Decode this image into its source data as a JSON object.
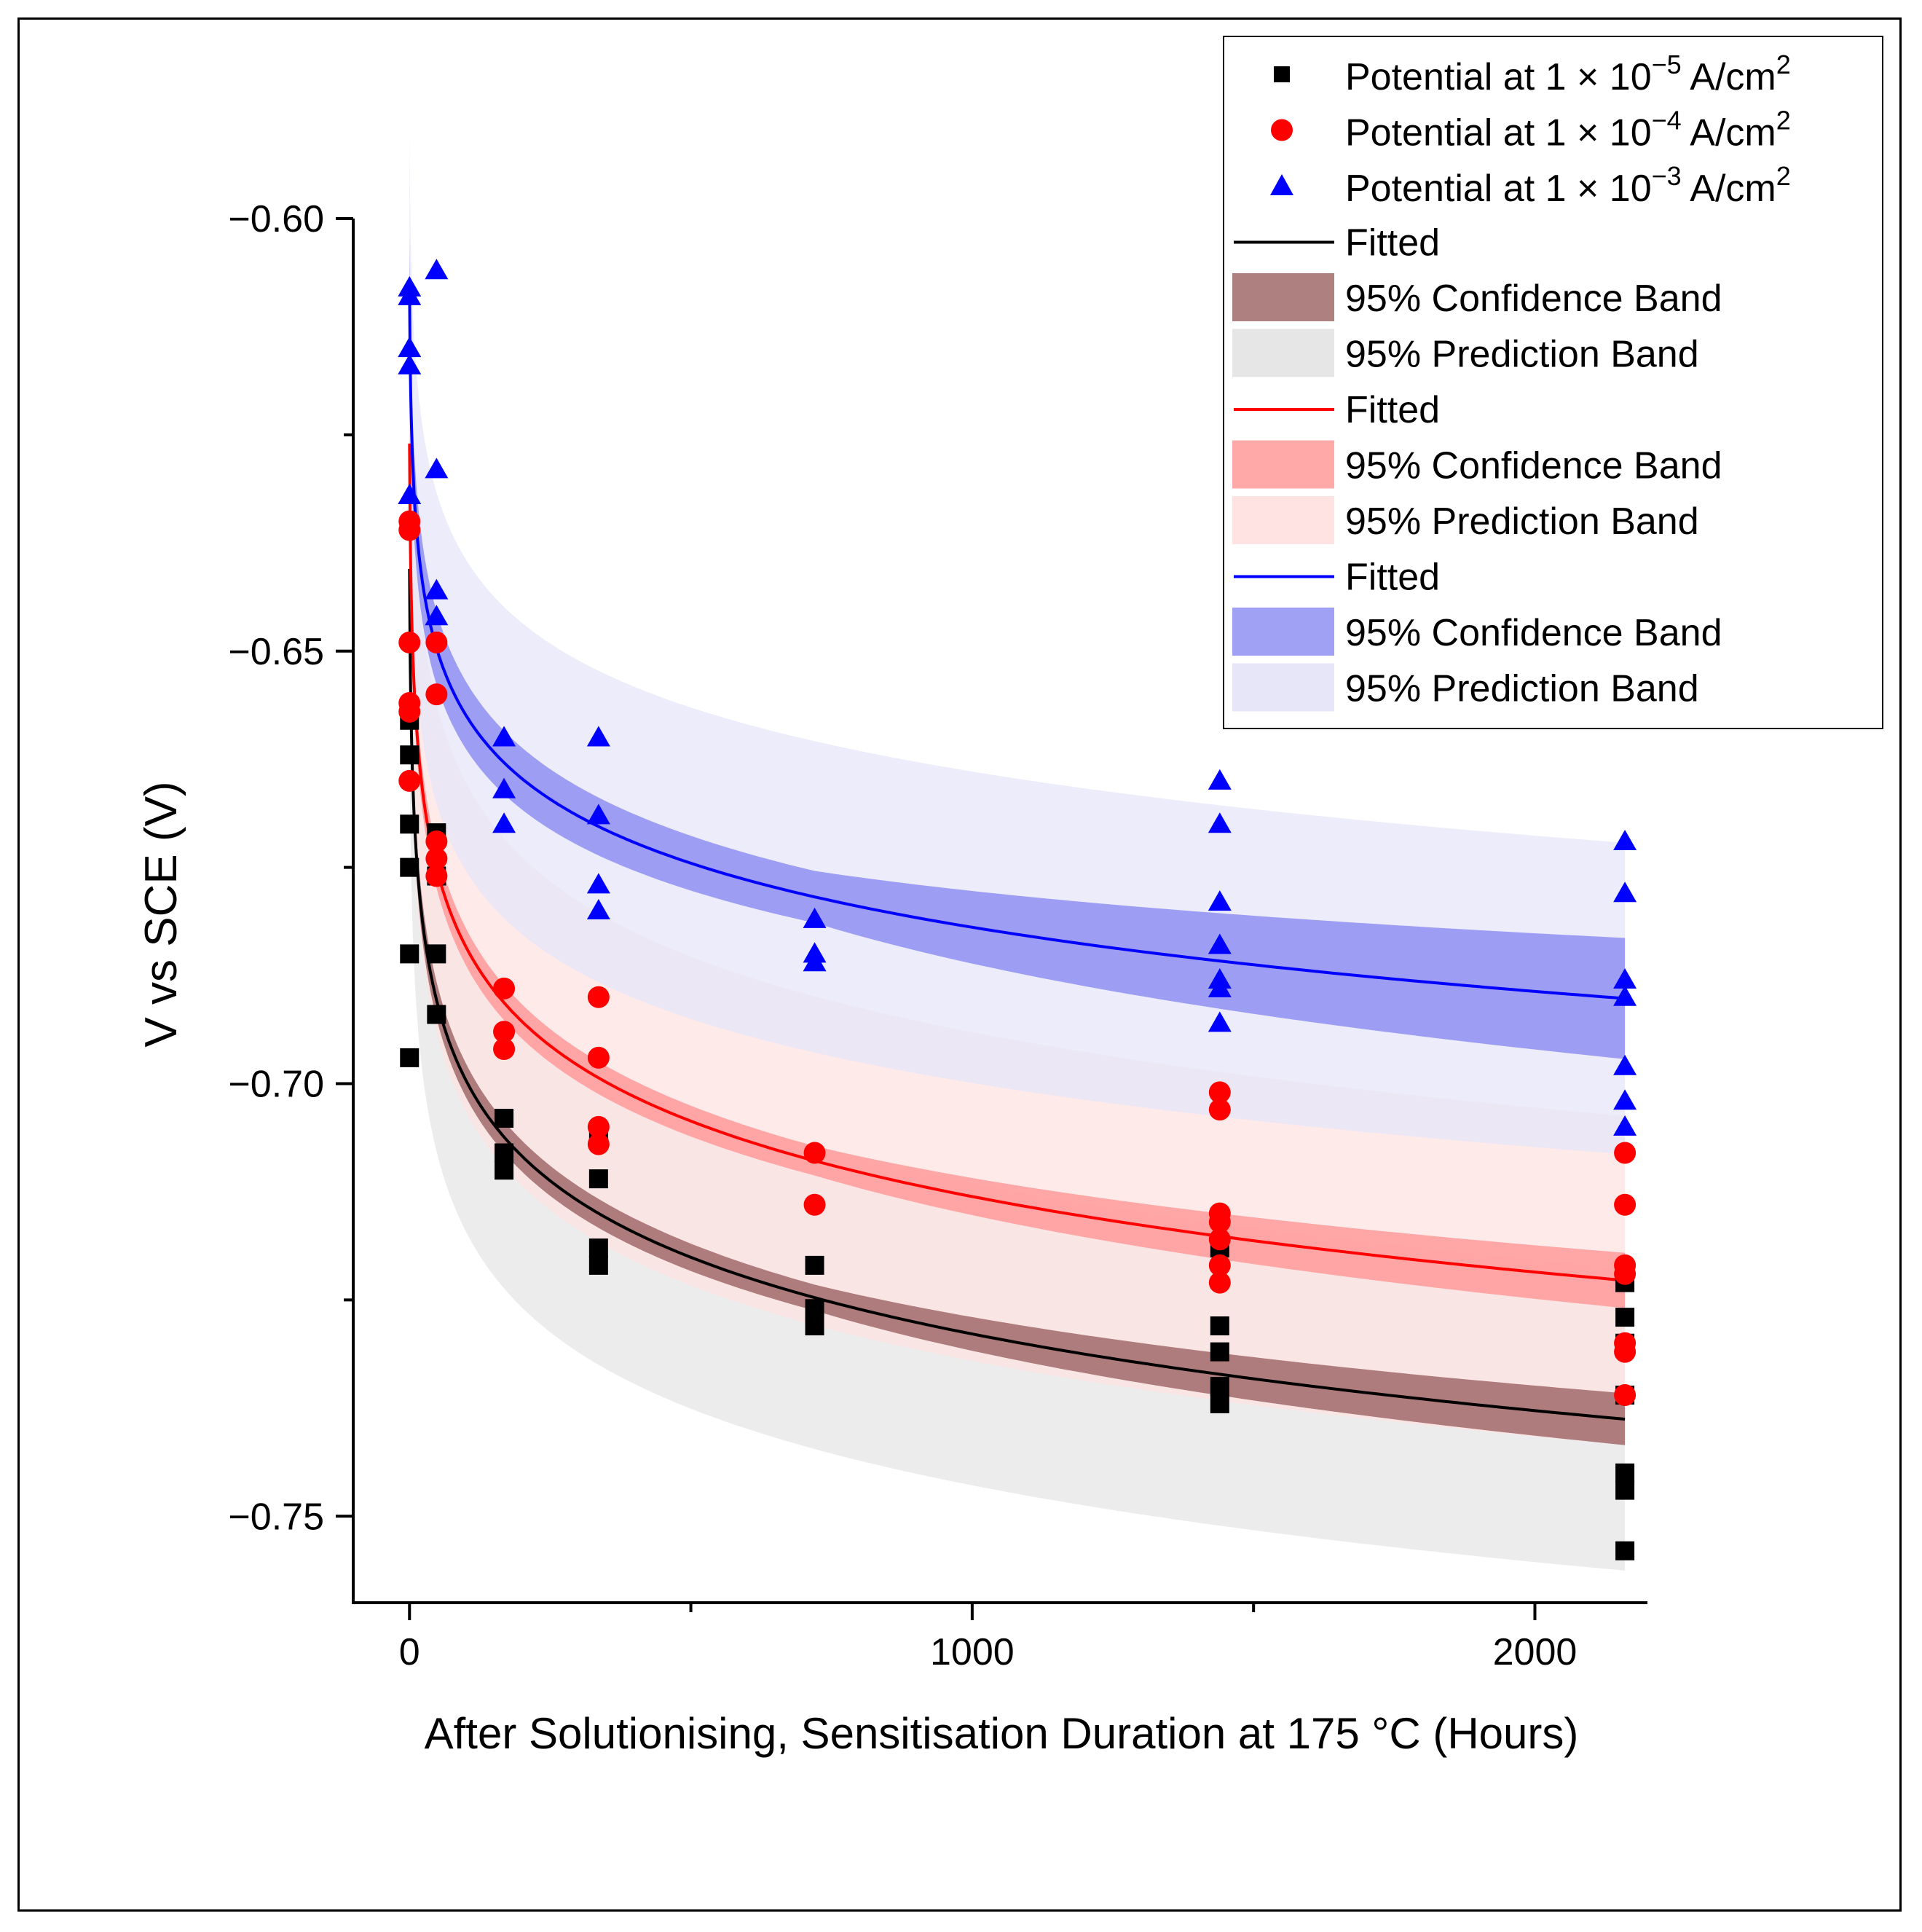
{
  "chart_data": {
    "type": "scatter",
    "xlabel": "After Solutionising, Sensitisation Duration at 175 °C (Hours)",
    "ylabel": "V vs SCE (V)",
    "xlim": [
      -100,
      2200
    ],
    "ylim": [
      -0.76,
      -0.6
    ],
    "x_ticks": [
      0,
      1000,
      2000
    ],
    "x_tick_labels": [
      "0",
      "1000",
      "2000"
    ],
    "y_ticks": [
      -0.6,
      -0.65,
      -0.7,
      -0.75
    ],
    "y_tick_labels": [
      "−0.60",
      "−0.65",
      "−0.70",
      "−0.75"
    ],
    "grid": false,
    "legend_position": "top-right",
    "series": [
      {
        "name": "Potential at 1 × 10⁻⁵ A/cm²",
        "legend_parts": {
          "pre": "Potential at 1 × 10",
          "exp": "−5",
          "post": " A/cm",
          "sup2": "2"
        },
        "marker": "square",
        "color": "#000000",
        "points": [
          [
            0,
            -0.658
          ],
          [
            0,
            -0.662
          ],
          [
            0,
            -0.67
          ],
          [
            0,
            -0.675
          ],
          [
            0,
            -0.685
          ],
          [
            0,
            -0.697
          ],
          [
            48,
            -0.671
          ],
          [
            48,
            -0.676
          ],
          [
            48,
            -0.685
          ],
          [
            48,
            -0.692
          ],
          [
            168,
            -0.704
          ],
          [
            168,
            -0.708
          ],
          [
            168,
            -0.71
          ],
          [
            336,
            -0.706
          ],
          [
            336,
            -0.711
          ],
          [
            336,
            -0.719
          ],
          [
            336,
            -0.721
          ],
          [
            720,
            -0.721
          ],
          [
            720,
            -0.726
          ],
          [
            720,
            -0.728
          ],
          [
            1440,
            -0.719
          ],
          [
            1440,
            -0.728
          ],
          [
            1440,
            -0.731
          ],
          [
            1440,
            -0.735
          ],
          [
            1440,
            -0.737
          ],
          [
            2160,
            -0.723
          ],
          [
            2160,
            -0.727
          ],
          [
            2160,
            -0.73
          ],
          [
            2160,
            -0.736
          ],
          [
            2160,
            -0.745
          ],
          [
            2160,
            -0.747
          ],
          [
            2160,
            -0.754
          ]
        ],
        "fit": {
          "a": -0.6405,
          "b": -0.0128
        },
        "confidence_band_halfwidth": [
          0.003,
          0.0015,
          0.003
        ],
        "prediction_band_halfwidth": 0.0175,
        "fit_label": "Fitted",
        "confidence_label": "95% Confidence Band",
        "prediction_label": "95% Prediction Band",
        "line_color": "#000000",
        "confidence_color": "#a06a6a",
        "prediction_color": "#e6e6e6"
      },
      {
        "name": "Potential at 1 × 10⁻⁴ A/cm²",
        "legend_parts": {
          "pre": "Potential at 1 × 10",
          "exp": "−4",
          "post": " A/cm",
          "sup2": "2"
        },
        "marker": "circle",
        "color": "#ff0000",
        "points": [
          [
            0,
            -0.635
          ],
          [
            0,
            -0.636
          ],
          [
            0,
            -0.649
          ],
          [
            0,
            -0.656
          ],
          [
            0,
            -0.657
          ],
          [
            0,
            -0.665
          ],
          [
            48,
            -0.649
          ],
          [
            48,
            -0.655
          ],
          [
            48,
            -0.672
          ],
          [
            48,
            -0.674
          ],
          [
            48,
            -0.676
          ],
          [
            168,
            -0.689
          ],
          [
            168,
            -0.694
          ],
          [
            168,
            -0.696
          ],
          [
            336,
            -0.69
          ],
          [
            336,
            -0.697
          ],
          [
            336,
            -0.705
          ],
          [
            336,
            -0.707
          ],
          [
            720,
            -0.708
          ],
          [
            720,
            -0.714
          ],
          [
            1440,
            -0.701
          ],
          [
            1440,
            -0.703
          ],
          [
            1440,
            -0.715
          ],
          [
            1440,
            -0.716
          ],
          [
            1440,
            -0.718
          ],
          [
            1440,
            -0.721
          ],
          [
            1440,
            -0.723
          ],
          [
            2160,
            -0.708
          ],
          [
            2160,
            -0.714
          ],
          [
            2160,
            -0.721
          ],
          [
            2160,
            -0.722
          ],
          [
            2160,
            -0.73
          ],
          [
            2160,
            -0.731
          ],
          [
            2160,
            -0.736
          ]
        ],
        "fit": {
          "a": -0.626,
          "b": -0.0126
        },
        "confidence_band_halfwidth": [
          0.0032,
          0.0017,
          0.0032
        ],
        "prediction_band_halfwidth": 0.019,
        "fit_label": "Fitted",
        "confidence_label": "95% Confidence Band",
        "prediction_label": "95% Prediction Band",
        "line_color": "#ff0000",
        "confidence_color": "#ff9a9a",
        "prediction_color": "#ffe3e3"
      },
      {
        "name": "Potential at 1 × 10⁻³ A/cm²",
        "legend_parts": {
          "pre": "Potential at 1 × 10",
          "exp": "−3",
          "post": " A/cm",
          "sup2": "2"
        },
        "marker": "triangle",
        "color": "#0000ff",
        "points": [
          [
            0,
            -0.608
          ],
          [
            0,
            -0.609
          ],
          [
            0,
            -0.615
          ],
          [
            0,
            -0.617
          ],
          [
            0,
            -0.632
          ],
          [
            48,
            -0.606
          ],
          [
            48,
            -0.629
          ],
          [
            48,
            -0.643
          ],
          [
            48,
            -0.646
          ],
          [
            168,
            -0.66
          ],
          [
            168,
            -0.666
          ],
          [
            168,
            -0.67
          ],
          [
            336,
            -0.66
          ],
          [
            336,
            -0.669
          ],
          [
            336,
            -0.677
          ],
          [
            336,
            -0.68
          ],
          [
            720,
            -0.681
          ],
          [
            720,
            -0.685
          ],
          [
            720,
            -0.686
          ],
          [
            1440,
            -0.665
          ],
          [
            1440,
            -0.67
          ],
          [
            1440,
            -0.679
          ],
          [
            1440,
            -0.684
          ],
          [
            1440,
            -0.688
          ],
          [
            1440,
            -0.689
          ],
          [
            1440,
            -0.693
          ],
          [
            2160,
            -0.672
          ],
          [
            2160,
            -0.678
          ],
          [
            2160,
            -0.688
          ],
          [
            2160,
            -0.69
          ],
          [
            2160,
            -0.698
          ],
          [
            2160,
            -0.702
          ],
          [
            2160,
            -0.705
          ]
        ],
        "fit": {
          "a": -0.608,
          "b": -0.0107
        },
        "confidence_band_halfwidth": [
          0.006,
          0.003,
          0.007
        ],
        "prediction_band_halfwidth": 0.018,
        "fit_label": "Fitted",
        "confidence_label": "95% Confidence Band",
        "prediction_label": "95% Prediction Band",
        "line_color": "#0000ff",
        "confidence_color": "#8f8ff2",
        "prediction_color": "#e6e6f8"
      }
    ]
  }
}
